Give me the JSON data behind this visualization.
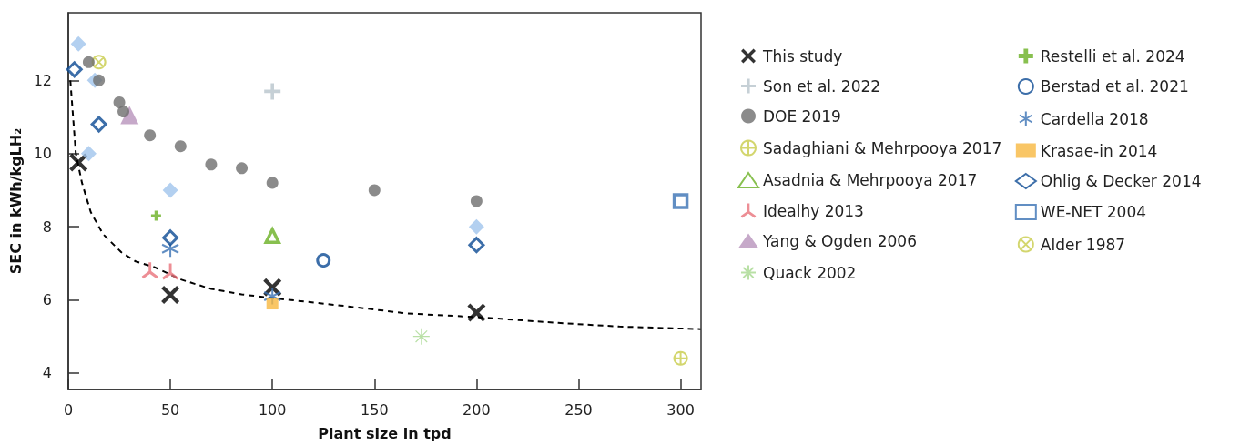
{
  "chart_data": {
    "type": "scatter",
    "xlabel": "Plant size in tpd",
    "ylabel": "SEC in kWh/kgLH₂",
    "xlim": [
      0,
      310
    ],
    "xticks": [
      0,
      50,
      100,
      150,
      200,
      250,
      300
    ],
    "ylim": [
      3.55,
      13.85
    ],
    "yticks": [
      4,
      6,
      8,
      10,
      12
    ],
    "grid": false,
    "legend": "right",
    "series": [
      {
        "name": "This study",
        "color": "#000000",
        "marker": "cross",
        "x": [
          5,
          50,
          100,
          200
        ],
        "values": [
          9.76,
          6.14,
          6.34,
          5.65
        ]
      },
      {
        "name": "Son et al. 2022",
        "color": "#b8c4cc",
        "marker": "cross",
        "x": [
          100
        ],
        "values": [
          11.7
        ]
      },
      {
        "name": "DOE 2019",
        "color": "#6e6e6e",
        "marker": "circle",
        "x": [
          10,
          15,
          25,
          27,
          40,
          55,
          70,
          85,
          100,
          150,
          200
        ],
        "values": [
          12.5,
          12.0,
          11.4,
          11.15,
          10.5,
          10.2,
          9.7,
          9.6,
          9.2,
          9.0,
          8.7
        ]
      },
      {
        "name": "Sadaghiani & Mehrpooya 2017",
        "color": "#c8cc4a",
        "marker": "cross",
        "x": [
          300
        ],
        "values": [
          4.4
        ]
      },
      {
        "name": "Asadnia & Mehrpooya 2017",
        "color": "#6ab023",
        "marker": "triangle",
        "x": [
          100
        ],
        "values": [
          7.75
        ]
      },
      {
        "name": "Idealhy 2013",
        "color": "#e8727a",
        "marker": "star",
        "x": [
          40,
          50
        ],
        "values": [
          6.8,
          6.77
        ]
      },
      {
        "name": "Yang & Ogden 2006",
        "color": "#b894bb",
        "marker": "triangle",
        "x": [
          30
        ],
        "values": [
          11.05
        ]
      },
      {
        "name": "Quack 2002",
        "color": "#a8d890",
        "marker": "cross",
        "x": [
          173
        ],
        "values": [
          5.0
        ]
      },
      {
        "name": "Restelli et al. 2024",
        "color": "#6ab023",
        "marker": "cross",
        "x": [
          43
        ],
        "values": [
          8.3
        ]
      },
      {
        "name": "Berstad et al. 2021",
        "color": "#0b4a94",
        "marker": "circle",
        "x": [
          125
        ],
        "values": [
          7.08
        ]
      },
      {
        "name": "Cardella 2018",
        "color": "#3a72b4",
        "marker": "cross",
        "x": [
          50,
          100
        ],
        "values": [
          7.4,
          6.1
        ]
      },
      {
        "name": "Krasae-in 2014",
        "color": "#f8b840",
        "marker": "square",
        "x": [
          100
        ],
        "values": [
          5.9
        ]
      },
      {
        "name": "Ohlig & Decker 2014",
        "color": "#0b4a94",
        "marker": "diamond",
        "x": [
          3,
          15,
          50,
          200
        ],
        "values": [
          12.3,
          10.8,
          7.7,
          7.5
        ]
      },
      {
        "color": "#a0c4ec",
        "marker": "diamond",
        "x": [
          5,
          13,
          10,
          50,
          200
        ],
        "values": [
          13.0,
          12.0,
          10.0,
          9.0,
          8.0
        ]
      },
      {
        "name": "WE-NET 2004",
        "color": "#3a72b4",
        "marker": "square",
        "x": [
          300
        ],
        "values": [
          8.7
        ]
      },
      {
        "name": "Alder 1987",
        "color": "#c8cc4a",
        "marker": "cross",
        "x": [
          15
        ],
        "values": [
          12.5
        ]
      },
      {
        "type": "line",
        "color": "#000000",
        "marker": "none",
        "line_style": "dashed",
        "x": [
          1,
          3.7,
          6.7,
          11,
          17,
          26,
          33,
          42,
          55.5,
          70,
          85,
          100,
          136,
          165.6,
          200,
          240,
          270,
          309.8
        ],
        "values": [
          12.0,
          10.0,
          9.2,
          8.4,
          7.8,
          7.3,
          7.05,
          6.9,
          6.55,
          6.3,
          6.15,
          6.05,
          5.83,
          5.63,
          5.53,
          5.37,
          5.27,
          5.2
        ]
      }
    ]
  }
}
